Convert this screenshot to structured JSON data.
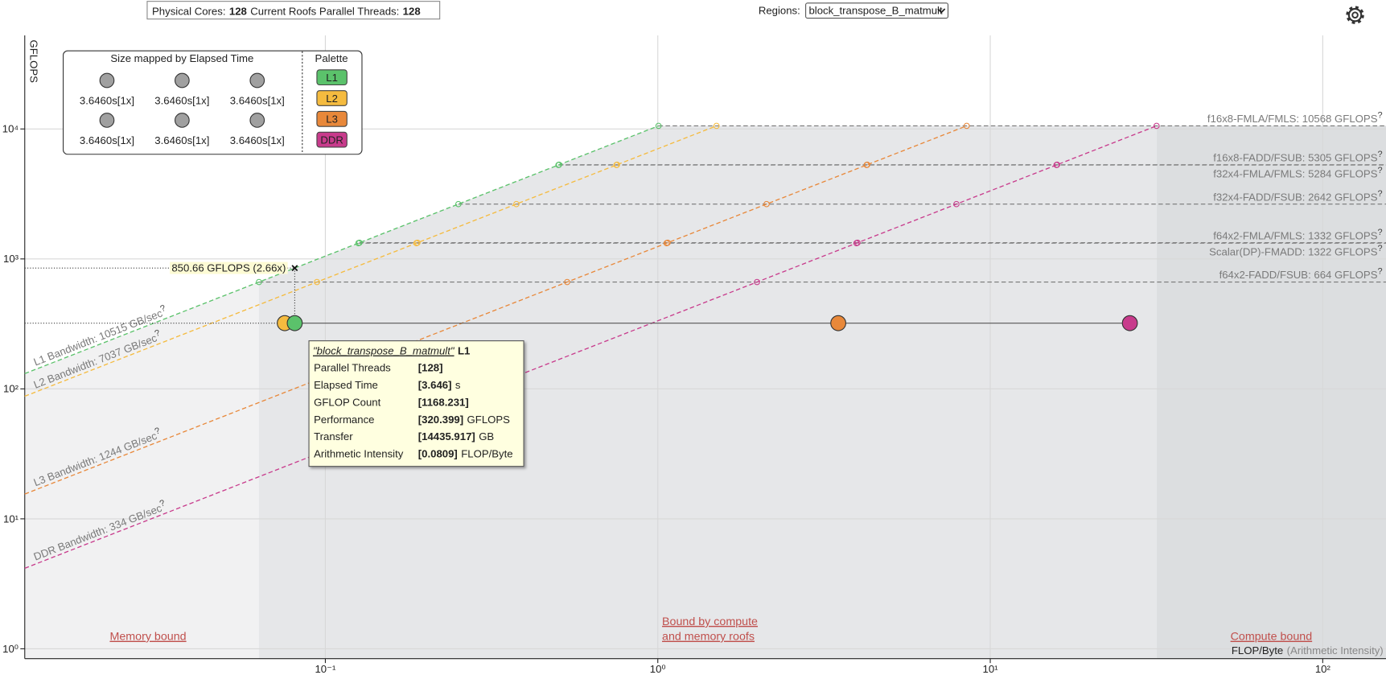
{
  "header": {
    "cores_label": "Physical Cores:",
    "cores": "128",
    "threads_label": "Current Roofs Parallel Threads:",
    "threads": "128",
    "regions_label": "Regions:",
    "region": "block_transpose_B_matmult"
  },
  "chart_data": {
    "type": "roofline",
    "y_label": "GFLOPS",
    "x_label": "FLOP/Byte",
    "x_label_note": "(Arithmetic Intensity)",
    "log_x": true,
    "log_y": true,
    "grid": true,
    "xlim": [
      0.01247,
      155
    ],
    "ylim": [
      0.84,
      52500
    ],
    "xticks": [
      {
        "value": 0.1,
        "label": "10⁻¹"
      },
      {
        "value": 1,
        "label": "10⁰"
      },
      {
        "value": 10,
        "label": "10¹"
      },
      {
        "value": 100,
        "label": "10²"
      }
    ],
    "yticks": [
      {
        "value": 1,
        "label": "10⁰"
      },
      {
        "value": 10,
        "label": "10¹"
      },
      {
        "value": 100,
        "label": "10²"
      },
      {
        "value": 1000,
        "label": "10³"
      },
      {
        "value": 10000,
        "label": "10⁴"
      }
    ],
    "help_mark": "?",
    "bandwidths": [
      {
        "label": "L1 Bandwidth: 10515 GB/sec",
        "value": 10515,
        "color": "#5bc26b"
      },
      {
        "label": "L2 Bandwidth: 7037 GB/sec",
        "value": 7037,
        "color": "#f5bb3f"
      },
      {
        "label": "L3 Bandwidth: 1244 GB/sec",
        "value": 1244,
        "color": "#e8883a"
      },
      {
        "label": "DDR Bandwidth: 334 GB/sec",
        "value": 334,
        "color": "#c83b8c"
      }
    ],
    "roofs": [
      {
        "label": "f16x8-FMLA/FMLS: 10568 GFLOPS",
        "value": 10568
      },
      {
        "label": "f16x8-FADD/FSUB: 5305 GFLOPS",
        "value": 5305
      },
      {
        "label": "f32x4-FMLA/FMLS: 5284 GFLOPS",
        "value": 5284
      },
      {
        "label": "f32x4-FADD/FSUB: 2642 GFLOPS",
        "value": 2642
      },
      {
        "label": "f64x2-FMLA/FMLS: 1332 GFLOPS",
        "value": 1332
      },
      {
        "label": "Scalar(DP)-FMADD: 1322 GFLOPS",
        "value": 1322
      },
      {
        "label": "f64x2-FADD/FSUB: 664 GFLOPS",
        "value": 664
      }
    ],
    "series": [
      {
        "name": "L1",
        "color": "#5bc26b",
        "x": [
          0.0809
        ],
        "values": [
          320.399
        ]
      },
      {
        "name": "L2",
        "color": "#f5bb3f",
        "x": [
          0.0755
        ],
        "values": [
          320.399
        ]
      },
      {
        "name": "L3",
        "color": "#e8883a",
        "x": [
          3.49
        ],
        "values": [
          320.399
        ]
      },
      {
        "name": "DDR",
        "color": "#c83b8c",
        "x": [
          26.3
        ],
        "values": [
          320.399
        ]
      }
    ],
    "annotation": {
      "label": "850.66 GFLOPS (2.66x)",
      "value": 850.66
    },
    "regions": {
      "memory": "Memory bound",
      "mixed": [
        "Bound by compute",
        "and memory roofs"
      ],
      "compute": "Compute bound"
    },
    "size_legend": {
      "title": "Size mapped by Elapsed Time",
      "labels": [
        "3.6460s[1x]",
        "3.6460s[1x]",
        "3.6460s[1x]",
        "3.6460s[1x]",
        "3.6460s[1x]",
        "3.6460s[1x]"
      ]
    },
    "palette_title": "Palette",
    "tooltip": {
      "region": "\"block_transpose_B_matmult\"",
      "level": "L1",
      "rows": [
        {
          "label": "Parallel Threads",
          "value": "[128]"
        },
        {
          "label": "Elapsed Time",
          "value": "[3.646]",
          "unit": "s"
        },
        {
          "label": "GFLOP Count",
          "value": "[1168.231]"
        },
        {
          "label": "Performance",
          "value": "[320.399]",
          "unit": "GFLOPS"
        },
        {
          "label": "Transfer",
          "value": "[14435.917]",
          "unit": "GB"
        },
        {
          "label": "Arithmetic Intensity",
          "value": "[0.0809]",
          "unit": "FLOP/Byte"
        }
      ]
    }
  }
}
